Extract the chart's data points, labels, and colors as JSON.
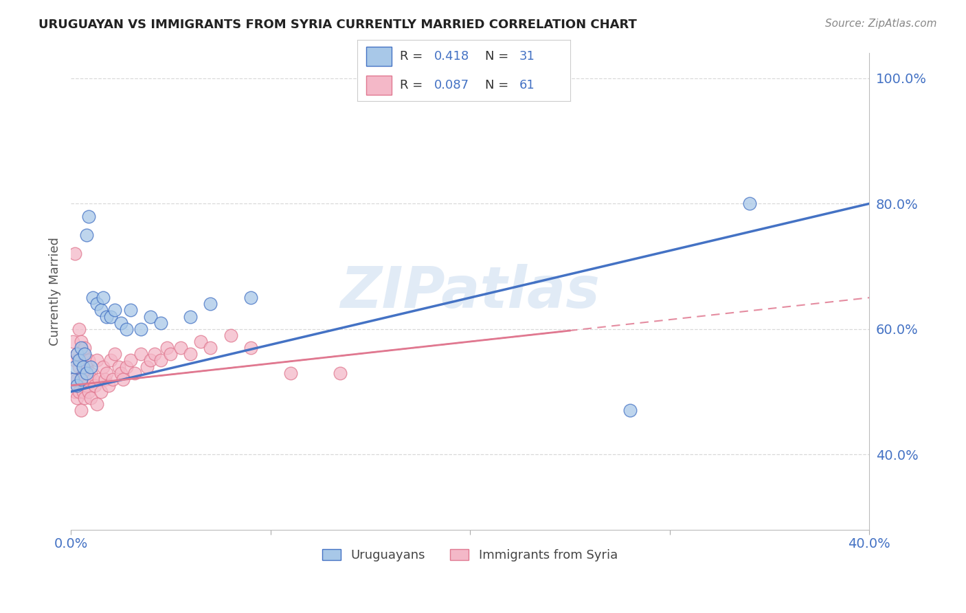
{
  "title": "URUGUAYAN VS IMMIGRANTS FROM SYRIA CURRENTLY MARRIED CORRELATION CHART",
  "source": "Source: ZipAtlas.com",
  "ylabel": "Currently Married",
  "watermark": "ZIPatlas",
  "legend_r1_val": "0.418",
  "legend_n1_val": "31",
  "legend_r2_val": "0.087",
  "legend_n2_val": "61",
  "legend_label1": "Uruguayans",
  "legend_label2": "Immigrants from Syria",
  "blue_dot_color": "#a8c8e8",
  "pink_dot_color": "#f4b8c8",
  "blue_line_color": "#4472c4",
  "pink_line_color": "#e07890",
  "xlim": [
    0.0,
    0.4
  ],
  "ylim": [
    0.28,
    1.04
  ],
  "yticks": [
    0.4,
    0.6,
    0.8,
    1.0
  ],
  "xticks": [
    0.0,
    0.1,
    0.2,
    0.3,
    0.4
  ],
  "uruguayan_x": [
    0.001,
    0.002,
    0.003,
    0.003,
    0.004,
    0.005,
    0.005,
    0.006,
    0.007,
    0.008,
    0.008,
    0.009,
    0.01,
    0.011,
    0.013,
    0.015,
    0.016,
    0.018,
    0.02,
    0.022,
    0.025,
    0.028,
    0.03,
    0.035,
    0.04,
    0.045,
    0.06,
    0.07,
    0.09,
    0.28,
    0.34
  ],
  "uruguayan_y": [
    0.52,
    0.54,
    0.51,
    0.56,
    0.55,
    0.52,
    0.57,
    0.54,
    0.56,
    0.53,
    0.75,
    0.78,
    0.54,
    0.65,
    0.64,
    0.63,
    0.65,
    0.62,
    0.62,
    0.63,
    0.61,
    0.6,
    0.63,
    0.6,
    0.62,
    0.61,
    0.62,
    0.64,
    0.65,
    0.47,
    0.8
  ],
  "syria_x": [
    0.001,
    0.001,
    0.002,
    0.002,
    0.002,
    0.003,
    0.003,
    0.003,
    0.004,
    0.004,
    0.004,
    0.005,
    0.005,
    0.005,
    0.005,
    0.006,
    0.006,
    0.006,
    0.007,
    0.007,
    0.007,
    0.008,
    0.008,
    0.009,
    0.009,
    0.01,
    0.01,
    0.011,
    0.012,
    0.013,
    0.013,
    0.014,
    0.015,
    0.016,
    0.017,
    0.018,
    0.019,
    0.02,
    0.021,
    0.022,
    0.024,
    0.025,
    0.026,
    0.028,
    0.03,
    0.032,
    0.035,
    0.038,
    0.04,
    0.042,
    0.045,
    0.048,
    0.05,
    0.055,
    0.06,
    0.065,
    0.07,
    0.08,
    0.09,
    0.11,
    0.135
  ],
  "syria_y": [
    0.52,
    0.58,
    0.5,
    0.55,
    0.72,
    0.49,
    0.52,
    0.56,
    0.5,
    0.54,
    0.6,
    0.47,
    0.52,
    0.55,
    0.58,
    0.5,
    0.53,
    0.56,
    0.49,
    0.52,
    0.57,
    0.51,
    0.54,
    0.5,
    0.55,
    0.49,
    0.53,
    0.52,
    0.51,
    0.55,
    0.48,
    0.52,
    0.5,
    0.54,
    0.52,
    0.53,
    0.51,
    0.55,
    0.52,
    0.56,
    0.54,
    0.53,
    0.52,
    0.54,
    0.55,
    0.53,
    0.56,
    0.54,
    0.55,
    0.56,
    0.55,
    0.57,
    0.56,
    0.57,
    0.56,
    0.58,
    0.57,
    0.59,
    0.57,
    0.53,
    0.53
  ],
  "background_color": "#ffffff",
  "grid_color": "#d0d0d0",
  "title_color": "#222222",
  "axis_label_color": "#555555",
  "tick_label_color": "#4472c4",
  "source_color": "#888888"
}
